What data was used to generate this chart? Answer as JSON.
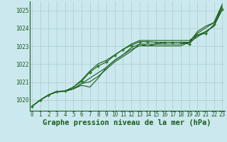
{
  "xlabel": "Graphe pression niveau de la mer (hPa)",
  "x_ticks": [
    0,
    1,
    2,
    3,
    4,
    5,
    6,
    7,
    8,
    9,
    10,
    11,
    12,
    13,
    14,
    15,
    16,
    17,
    18,
    19,
    20,
    21,
    22,
    23
  ],
  "xlim": [
    -0.3,
    23.3
  ],
  "ylim": [
    1019.4,
    1025.5
  ],
  "y_ticks": [
    1020,
    1021,
    1022,
    1023,
    1024,
    1025
  ],
  "bg_color": "#cce8ef",
  "grid_color": "#aacccc",
  "line_color": "#1a5c1a",
  "marker_color": "#2e7d2e",
  "series": [
    [
      1019.65,
      1020.0,
      1020.28,
      1020.48,
      1020.5,
      1020.72,
      1021.05,
      1021.55,
      1021.9,
      1022.12,
      1022.5,
      1022.82,
      1023.05,
      1023.25,
      1023.25,
      1023.22,
      1023.22,
      1023.22,
      1023.22,
      1023.12,
      1023.62,
      1023.72,
      1024.22,
      1025.05
    ],
    [
      1019.65,
      1020.0,
      1020.28,
      1020.45,
      1020.48,
      1020.62,
      1020.82,
      1020.72,
      1021.22,
      1021.82,
      1022.22,
      1022.52,
      1022.92,
      1023.12,
      1023.02,
      1023.02,
      1023.02,
      1023.02,
      1023.02,
      1023.22,
      1023.82,
      1024.12,
      1024.32,
      1025.35
    ],
    [
      1019.65,
      1020.0,
      1020.28,
      1020.48,
      1020.5,
      1020.62,
      1020.92,
      1021.22,
      1021.52,
      1021.82,
      1022.22,
      1022.52,
      1022.82,
      1023.02,
      1023.02,
      1023.12,
      1023.22,
      1023.22,
      1023.22,
      1023.22,
      1023.52,
      1023.82,
      1024.12,
      1025.22
    ],
    [
      1019.65,
      1020.0,
      1020.28,
      1020.48,
      1020.5,
      1020.62,
      1020.92,
      1021.02,
      1021.32,
      1021.72,
      1022.12,
      1022.42,
      1022.72,
      1023.12,
      1023.12,
      1023.12,
      1023.12,
      1023.12,
      1023.12,
      1023.22,
      1023.72,
      1024.02,
      1024.32,
      1025.22
    ],
    [
      1019.65,
      1020.0,
      1020.28,
      1020.48,
      1020.5,
      1020.72,
      1021.12,
      1021.62,
      1022.02,
      1022.22,
      1022.52,
      1022.82,
      1023.12,
      1023.32,
      1023.32,
      1023.32,
      1023.32,
      1023.32,
      1023.32,
      1023.32,
      1023.62,
      1023.82,
      1024.12,
      1025.05
    ]
  ],
  "title_fontsize": 7,
  "tick_fontsize": 5.5,
  "label_fontsize": 7.5
}
